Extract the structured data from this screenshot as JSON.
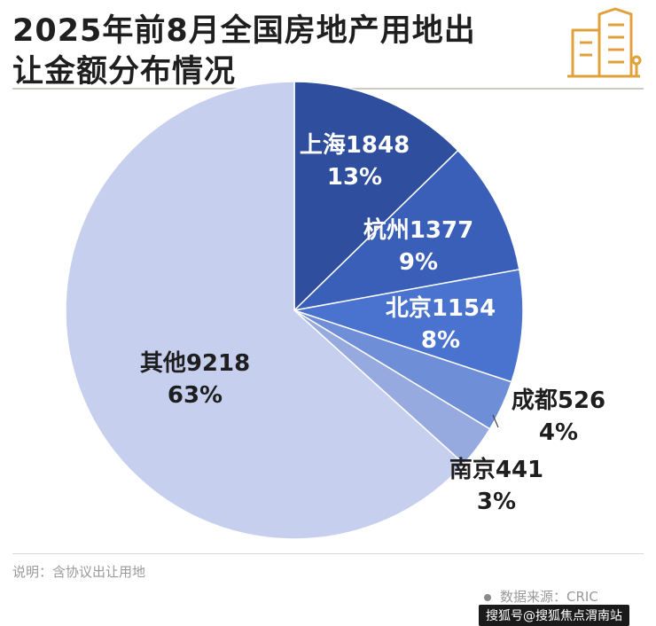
{
  "title": {
    "line1": "2025年前8月全国房地产用地出",
    "line2": "让金额分布情况"
  },
  "chart_data": {
    "type": "pie",
    "title": "2025年前8月全国房地产用地出让金额分布情况",
    "slices": [
      {
        "name": "上海",
        "value": 1848,
        "percent": "13%",
        "color": "#2f4f9e"
      },
      {
        "name": "杭州",
        "value": 1377,
        "percent": "9%",
        "color": "#3a5fb8"
      },
      {
        "name": "北京",
        "value": 1154,
        "percent": "8%",
        "color": "#4a72cf"
      },
      {
        "name": "成都",
        "value": 526,
        "percent": "4%",
        "color": "#6f8ed8"
      },
      {
        "name": "南京",
        "value": 441,
        "percent": "3%",
        "color": "#97aae0"
      },
      {
        "name": "其他",
        "value": 9218,
        "percent": "63%",
        "color": "#c6d0ee"
      }
    ]
  },
  "footer": {
    "note": "说明：含协议出让用地",
    "source": "数据来源：CRIC",
    "watermark": "搜狐号@搜狐焦点渭南站"
  },
  "icons": {
    "building": "building-icon"
  }
}
